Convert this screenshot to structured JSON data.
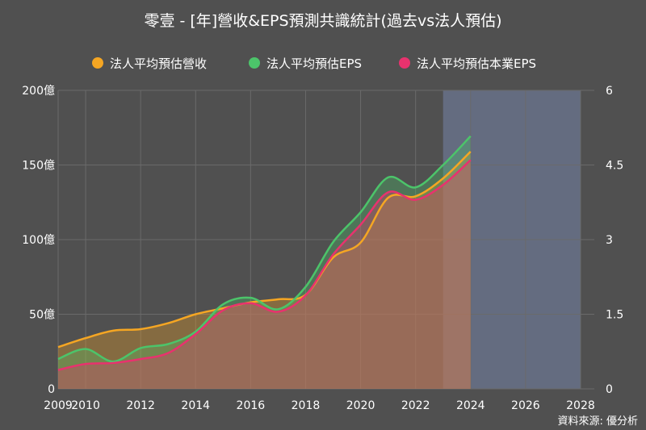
{
  "chart_data": {
    "type": "area",
    "title": "零壹 - [年]營收&EPS預測共識統計(過去vs法人預估)",
    "x_ticks": [
      2009,
      2010,
      2012,
      2014,
      2016,
      2018,
      2020,
      2022,
      2024,
      2026,
      2028
    ],
    "x_tick_labels": [
      "2009",
      "2010",
      "2012",
      "2014",
      "2016",
      "2018",
      "2020",
      "2022",
      "2024",
      "2026",
      "2028"
    ],
    "xlim": [
      2009,
      2028.5
    ],
    "forecast_band": [
      2023,
      2028
    ],
    "y_left": {
      "range": [
        0,
        200
      ],
      "ticks": [
        0,
        50,
        100,
        150,
        200
      ],
      "labels": [
        "0",
        "50億",
        "100億",
        "150億",
        "200億"
      ]
    },
    "y_right": {
      "range": [
        0,
        6
      ],
      "ticks": [
        0,
        1.5,
        3,
        4.5,
        6
      ],
      "labels": [
        "0",
        "1.5",
        "3",
        "4.5",
        "6"
      ]
    },
    "series": [
      {
        "name": "法人平均預估營收",
        "axis": "left",
        "color": "#f5a623",
        "x": [
          2009,
          2010,
          2011,
          2012,
          2013,
          2014,
          2015,
          2016,
          2017,
          2018,
          2019,
          2020,
          2021,
          2022,
          2023,
          2024
        ],
        "values": [
          28,
          34,
          39,
          40,
          44,
          50,
          54,
          58,
          60,
          63,
          88,
          98,
          128,
          129,
          141,
          159
        ]
      },
      {
        "name": "法人平均預估EPS",
        "axis": "right",
        "color": "#4cc46a",
        "x": [
          2009,
          2010,
          2011,
          2012,
          2013,
          2014,
          2015,
          2016,
          2017,
          2018,
          2019,
          2020,
          2021,
          2022,
          2023,
          2024
        ],
        "values": [
          0.6,
          0.8,
          0.55,
          0.82,
          0.9,
          1.15,
          1.7,
          1.83,
          1.6,
          2.05,
          2.95,
          3.55,
          4.25,
          4.05,
          4.5,
          5.08
        ]
      },
      {
        "name": "法人平均預估本業EPS",
        "axis": "right",
        "color": "#e8326e",
        "x": [
          2009,
          2010,
          2011,
          2012,
          2013,
          2014,
          2015,
          2016,
          2017,
          2018,
          2019,
          2020,
          2021,
          2022,
          2023,
          2024
        ],
        "values": [
          0.38,
          0.5,
          0.52,
          0.6,
          0.72,
          1.1,
          1.58,
          1.72,
          1.55,
          1.88,
          2.7,
          3.3,
          3.95,
          3.8,
          4.1,
          4.6
        ]
      }
    ],
    "legend_position": "top",
    "grid": true
  },
  "source_text": "資料來源: 優分析"
}
